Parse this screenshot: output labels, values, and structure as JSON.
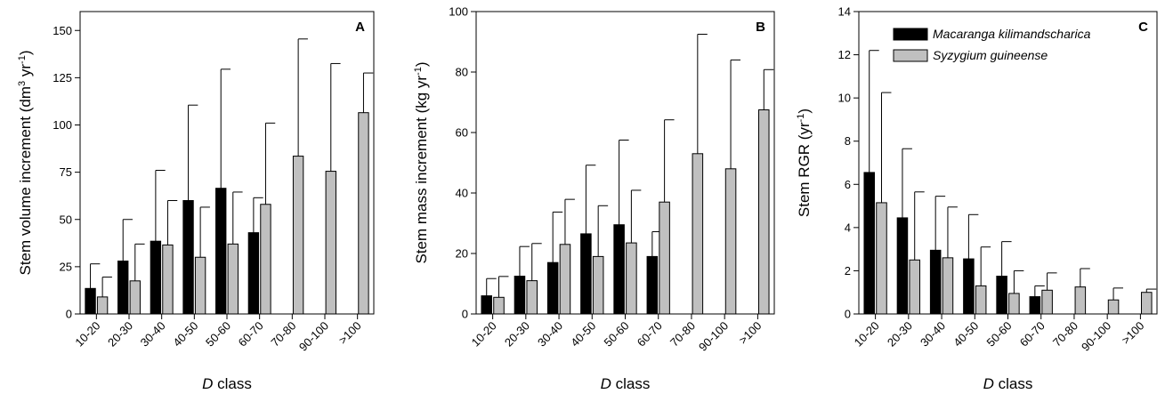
{
  "legend": {
    "series_a_name": "Macaranga kilimandscharica",
    "series_b_name": "Syzygium guineense"
  },
  "colors": {
    "series_a": "#000000",
    "series_b": "#c0c0c0"
  },
  "chart_data": [
    {
      "type": "bar",
      "panel": "A",
      "categories": [
        "10-20",
        "20-30",
        "30-40",
        "40-50",
        "50-60",
        "60-70",
        "70-80",
        "90-100",
        ">100"
      ],
      "ylabel_main": "Stem volume increment (dm",
      "ylabel_sup1": "3",
      "ylabel_mid": " yr",
      "ylabel_sup2": "-1",
      "ylabel_end": ")",
      "xlabel_italic": "D",
      "xlabel_rest": " class",
      "ylim": [
        0,
        160
      ],
      "yticks": [
        0,
        25,
        50,
        75,
        100,
        125,
        150
      ],
      "series": [
        {
          "name": "Macaranga kilimandscharica",
          "values": [
            13.5,
            28,
            38.5,
            60,
            66.5,
            43,
            null,
            null,
            null
          ],
          "error": [
            13,
            22,
            37.5,
            50.5,
            63,
            18.5,
            null,
            null,
            null
          ]
        },
        {
          "name": "Syzygium guineense",
          "values": [
            9,
            17.5,
            36.5,
            30,
            37,
            58,
            83.5,
            75.5,
            106.5
          ],
          "error": [
            10.5,
            19.5,
            23.5,
            26.5,
            27.5,
            43,
            62,
            57,
            21
          ]
        }
      ]
    },
    {
      "type": "bar",
      "panel": "B",
      "categories": [
        "10-20",
        "20-30",
        "30-40",
        "40-50",
        "50-60",
        "60-70",
        "70-80",
        "90-100",
        ">100"
      ],
      "ylabel_main": "Stem mass increment (kg yr",
      "ylabel_sup1": "-1",
      "ylabel_end": ")",
      "xlabel_italic": "D",
      "xlabel_rest": " class",
      "ylim": [
        0,
        100
      ],
      "yticks": [
        0,
        20,
        40,
        60,
        80,
        100
      ],
      "series": [
        {
          "name": "Macaranga kilimandscharica",
          "values": [
            6,
            12.5,
            17,
            26.5,
            29.5,
            19,
            null,
            null,
            null
          ],
          "error": [
            5.7,
            9.8,
            16.7,
            22.7,
            28,
            8.2,
            null,
            null,
            null
          ]
        },
        {
          "name": "Syzygium guineense",
          "values": [
            5.5,
            11,
            23,
            19,
            23.5,
            37,
            53,
            48,
            67.5
          ],
          "error": [
            6.9,
            12.3,
            14.9,
            16.8,
            17.4,
            27.2,
            39.5,
            36,
            13.3
          ]
        }
      ]
    },
    {
      "type": "bar",
      "panel": "C",
      "categories": [
        "10-20",
        "20-30",
        "30-40",
        "40-50",
        "50-60",
        "60-70",
        "70-80",
        "90-100",
        ">100"
      ],
      "ylabel_main": "Stem RGR (yr",
      "ylabel_sup1": "-1",
      "ylabel_end": ")",
      "xlabel_italic": "D",
      "xlabel_rest": " class",
      "ylim": [
        0,
        14
      ],
      "yticks": [
        0,
        2,
        4,
        6,
        8,
        10,
        12,
        14
      ],
      "legend_position": "top-left",
      "series": [
        {
          "name": "Macaranga kilimandscharica",
          "values": [
            6.55,
            4.45,
            2.95,
            2.55,
            1.75,
            0.8,
            null,
            null,
            null
          ],
          "error": [
            5.65,
            3.2,
            2.5,
            2.05,
            1.6,
            0.5,
            null,
            null,
            null
          ]
        },
        {
          "name": "Syzygium guineense",
          "values": [
            5.15,
            2.5,
            2.6,
            1.3,
            0.95,
            1.1,
            1.25,
            0.65,
            1.0
          ],
          "error": [
            5.1,
            3.15,
            2.35,
            1.8,
            1.05,
            0.8,
            0.85,
            0.55,
            0.15
          ]
        }
      ]
    }
  ]
}
